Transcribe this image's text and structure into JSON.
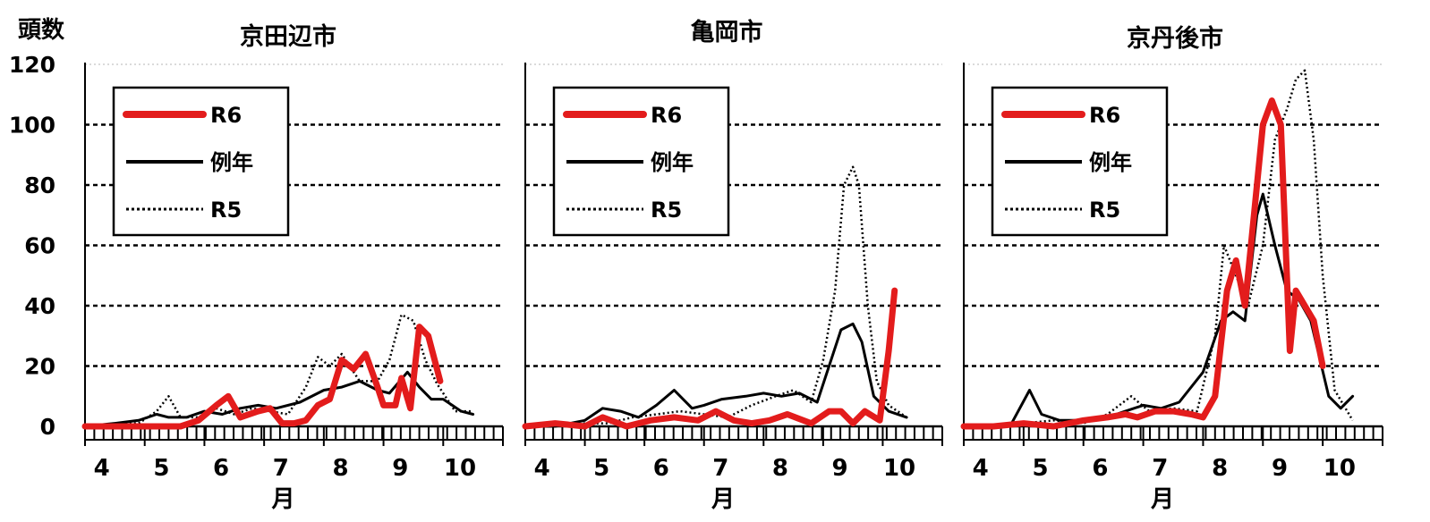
{
  "y_axis_unit": "頭数",
  "x_axis_unit": "月",
  "chart_data": [
    {
      "type": "line",
      "title": "京田辺市",
      "xlabel": "月",
      "ylabel": "頭数",
      "ylim": [
        0,
        120
      ],
      "yticks": [
        0,
        20,
        40,
        60,
        80,
        100,
        120
      ],
      "xlim": [
        4,
        11
      ],
      "xtick_labels": [
        "4",
        "5",
        "6",
        "7",
        "8",
        "9",
        "10"
      ],
      "grid": true,
      "legend": "top-left",
      "series": [
        {
          "name": "R6",
          "style": "thick-red",
          "color": "#e31c1c",
          "x": [
            4.0,
            4.3,
            4.6,
            5.0,
            5.3,
            5.6,
            5.9,
            6.2,
            6.4,
            6.6,
            6.9,
            7.1,
            7.3,
            7.5,
            7.7,
            7.9,
            8.1,
            8.3,
            8.5,
            8.7,
            8.9,
            9.0,
            9.2,
            9.3,
            9.45,
            9.6,
            9.75,
            9.95
          ],
          "y": [
            0,
            0,
            0,
            0,
            0,
            0,
            2,
            7,
            10,
            3,
            5,
            6,
            1,
            1,
            2,
            7,
            9,
            22,
            19,
            24,
            13,
            7,
            7,
            16,
            6,
            33,
            30,
            15
          ]
        },
        {
          "name": "例年",
          "style": "thin-black",
          "color": "#000000",
          "x": [
            4.0,
            4.5,
            4.9,
            5.2,
            5.4,
            5.7,
            6.0,
            6.3,
            6.6,
            6.9,
            7.2,
            7.6,
            8.0,
            8.3,
            8.6,
            8.9,
            9.1,
            9.4,
            9.6,
            9.8,
            10.0,
            10.3,
            10.5
          ],
          "y": [
            0,
            1,
            2,
            4,
            3,
            3,
            5,
            4,
            6,
            7,
            6,
            8,
            12,
            13,
            15,
            12,
            11,
            18,
            13,
            9,
            9,
            5,
            4
          ]
        },
        {
          "name": "R5",
          "style": "dotted-black",
          "color": "#000000",
          "x": [
            4.0,
            4.5,
            4.9,
            5.2,
            5.4,
            5.6,
            5.9,
            6.2,
            6.5,
            6.8,
            7.1,
            7.4,
            7.7,
            7.9,
            8.1,
            8.3,
            8.6,
            8.9,
            9.1,
            9.3,
            9.5,
            9.7,
            9.9,
            10.2,
            10.5
          ],
          "y": [
            0,
            1,
            1,
            5,
            10,
            3,
            3,
            6,
            4,
            6,
            5,
            4,
            13,
            23,
            20,
            24,
            15,
            15,
            22,
            37,
            35,
            22,
            14,
            5,
            5
          ]
        }
      ]
    },
    {
      "type": "line",
      "title": "亀岡市",
      "xlabel": "月",
      "ylabel": "頭数",
      "ylim": [
        0,
        120
      ],
      "yticks": [
        0,
        20,
        40,
        60,
        80,
        100,
        120
      ],
      "xlim": [
        4,
        11
      ],
      "xtick_labels": [
        "4",
        "5",
        "6",
        "7",
        "8",
        "9",
        "10"
      ],
      "grid": true,
      "legend": "top-left",
      "series": [
        {
          "name": "R6",
          "style": "thick-red",
          "color": "#e31c1c",
          "x": [
            4.0,
            4.5,
            5.0,
            5.3,
            5.7,
            6.1,
            6.5,
            6.9,
            7.2,
            7.5,
            7.8,
            8.1,
            8.4,
            8.8,
            9.1,
            9.3,
            9.5,
            9.7,
            9.95,
            10.1,
            10.2
          ],
          "y": [
            0,
            1,
            0,
            3,
            0,
            2,
            3,
            2,
            5,
            2,
            1,
            2,
            4,
            1,
            5,
            5,
            1,
            5,
            2,
            25,
            45
          ]
        },
        {
          "name": "例年",
          "style": "thin-black",
          "color": "#000000",
          "x": [
            4.0,
            4.5,
            5.0,
            5.3,
            5.6,
            5.9,
            6.2,
            6.5,
            6.8,
            7.0,
            7.3,
            7.7,
            8.0,
            8.3,
            8.6,
            8.9,
            9.1,
            9.3,
            9.5,
            9.65,
            9.85,
            10.1,
            10.4
          ],
          "y": [
            0,
            0,
            2,
            6,
            5,
            3,
            7,
            12,
            6,
            7,
            9,
            10,
            11,
            10,
            11,
            8,
            20,
            32,
            34,
            28,
            10,
            5,
            3
          ]
        },
        {
          "name": "R5",
          "style": "dotted-black",
          "color": "#000000",
          "x": [
            4.0,
            4.5,
            5.0,
            5.4,
            5.8,
            6.2,
            6.6,
            7.0,
            7.4,
            7.8,
            8.2,
            8.5,
            8.8,
            9.0,
            9.2,
            9.35,
            9.5,
            9.6,
            9.75,
            9.9,
            10.1,
            10.4
          ],
          "y": [
            0,
            0,
            1,
            1,
            3,
            4,
            5,
            4,
            3,
            7,
            10,
            12,
            8,
            22,
            45,
            80,
            86,
            80,
            40,
            15,
            7,
            3
          ]
        }
      ]
    },
    {
      "type": "line",
      "title": "京丹後市",
      "xlabel": "月",
      "ylabel": "頭数",
      "ylim": [
        0,
        120
      ],
      "yticks": [
        0,
        20,
        40,
        60,
        80,
        100,
        120
      ],
      "xlim": [
        4,
        11
      ],
      "xtick_labels": [
        "4",
        "5",
        "6",
        "7",
        "8",
        "9",
        "10"
      ],
      "grid": true,
      "legend": "top-left",
      "series": [
        {
          "name": "R6",
          "style": "thick-red",
          "color": "#e31c1c",
          "x": [
            4.0,
            4.5,
            5.0,
            5.5,
            6.0,
            6.4,
            6.7,
            6.9,
            7.2,
            7.5,
            7.8,
            8.0,
            8.2,
            8.4,
            8.55,
            8.7,
            8.85,
            9.0,
            9.15,
            9.3,
            9.45,
            9.55,
            9.7,
            9.85,
            10.0
          ],
          "y": [
            0,
            0,
            1,
            0,
            2,
            3,
            4,
            3,
            5,
            5,
            4,
            3,
            10,
            45,
            55,
            40,
            70,
            100,
            108,
            100,
            25,
            45,
            40,
            35,
            20
          ]
        },
        {
          "name": "例年",
          "style": "thin-black",
          "color": "#000000",
          "x": [
            4.0,
            4.5,
            4.8,
            5.1,
            5.3,
            5.6,
            6.0,
            6.4,
            6.7,
            7.0,
            7.3,
            7.6,
            8.0,
            8.3,
            8.5,
            8.7,
            8.9,
            9.0,
            9.2,
            9.4,
            9.6,
            9.8,
            10.1,
            10.3,
            10.5
          ],
          "y": [
            0,
            0,
            1,
            12,
            4,
            2,
            2,
            3,
            5,
            7,
            6,
            8,
            18,
            35,
            38,
            35,
            70,
            77,
            60,
            45,
            42,
            35,
            10,
            6,
            10
          ]
        },
        {
          "name": "R5",
          "style": "dotted-black",
          "color": "#000000",
          "x": [
            4.0,
            4.5,
            5.0,
            5.5,
            6.0,
            6.4,
            6.8,
            7.1,
            7.5,
            7.9,
            8.2,
            8.35,
            8.55,
            8.75,
            9.0,
            9.2,
            9.4,
            9.55,
            9.7,
            9.85,
            10.0,
            10.2,
            10.5
          ],
          "y": [
            0,
            0,
            1,
            2,
            1,
            4,
            10,
            5,
            6,
            5,
            30,
            60,
            50,
            40,
            60,
            95,
            105,
            115,
            118,
            95,
            50,
            12,
            2
          ]
        }
      ]
    }
  ]
}
